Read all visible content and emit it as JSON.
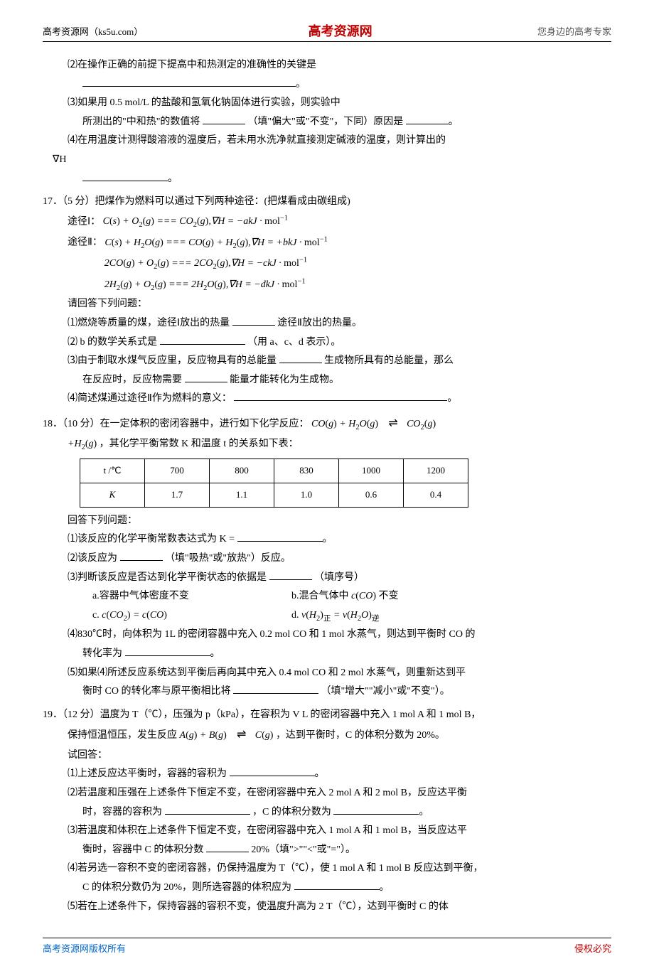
{
  "header": {
    "left": "高考资源网（ks5u.com）",
    "center": "高考资源网",
    "right": "您身边的高考专家"
  },
  "footer": {
    "left": "高考资源网版权所有",
    "right": "侵权必究"
  },
  "q16": {
    "p2": "⑵在操作正确的前提下提高中和热测定的准确性的关键是",
    "p3_a": "⑶如果用 0.5 mol/L 的盐酸和氢氧化钠固体进行实验，则实验中",
    "p3_b": "所测出的\"中和热\"的数值将",
    "p3_c": "（填\"偏大\"或\"不变\"，下同）原因是",
    "p4_a": "⑷在用温度计测得酸溶液的温度后，若未用水洗净就直接测定碱液的温度，则计算出的",
    "p4_b": "∇H"
  },
  "q17": {
    "head": "17．（5 分）把煤作为燃料可以通过下列两种途径：(把煤看成由碳组成)",
    "r1": "途径Ⅰ：",
    "r2": "途径Ⅱ：",
    "ask": "请回答下列问题：",
    "p1_a": "⑴燃烧等质量的煤，途径Ⅰ放出的热量",
    "p1_b": "途径Ⅱ放出的热量。",
    "p2_a": "⑵ b 的数学关系式是",
    "p2_b": "（用 a、c、d 表示）。",
    "p3_a": "⑶由于制取水煤气反应里，反应物具有的总能量",
    "p3_b": "生成物所具有的总能量，那么",
    "p3_c": "在反应时，反应物需要",
    "p3_d": "能量才能转化为生成物。",
    "p4": "⑷简述煤通过途径Ⅱ作为燃料的意义："
  },
  "q18": {
    "head_a": "18．（10 分）在一定体积的密闭容器中，进行如下化学反应：",
    "head_b": "，其化学平衡常数 K 和温度 t 的关系如下表：",
    "table": {
      "columns": [
        "t /℃",
        "700",
        "800",
        "830",
        "1000",
        "1200"
      ],
      "row2": [
        "K",
        "1.7",
        "1.1",
        "1.0",
        "0.6",
        "0.4"
      ]
    },
    "ask": "回答下列问题：",
    "p1": "⑴该反应的化学平衡常数表达式为 K =",
    "p2_a": "⑵该反应为",
    "p2_b": "（填\"吸热\"或\"放热\"）反应。",
    "p3_a": "⑶判断该反应是否达到化学平衡状态的依据是",
    "p3_b": "（填序号）",
    "opt_a": "a.容器中气体密度不变",
    "opt_b": "b.混合气体中 c(CO) 不变",
    "opt_c": "c. c(CO₂) = c(CO)",
    "opt_d": "d. v(H₂)正 = v(H₂O)逆",
    "p4_a": "⑷830℃时，向体积为 1L 的密闭容器中充入 0.2 mol CO 和 1 mol 水蒸气，则达到平衡时 CO 的",
    "p4_b": "转化率为",
    "p5_a": "⑸如果⑷所述反应系统达到平衡后再向其中充入 0.4 mol CO 和 2 mol 水蒸气，则重新达到平",
    "p5_b": "衡时 CO 的转化率与原平衡相比将",
    "p5_c": "（填\"增大\"\"减小\"或\"不变\"）。"
  },
  "q19": {
    "head_a": "19．（12 分）温度为 T（℃），压强为 p（kPa），在容积为 V L 的密闭容器中充入 1 mol A 和 1 mol B，",
    "head_b": "保持恒温恒压，发生反应",
    "head_c": "，达到平衡时，C 的体积分数为 20%。",
    "ask": "试回答：",
    "p1": "⑴上述反应达平衡时，容器的容积为",
    "p2_a": "⑵若温度和压强在上述条件下恒定不变，在密闭容器中充入 2 mol A 和 2 mol B，反应达平衡",
    "p2_b": "时，容器的容积为",
    "p2_c": "，C 的体积分数为",
    "p3_a": "⑶若温度和体积在上述条件下恒定不变，在密闭容器中充入 1 mol A 和 1 mol B，当反应达平",
    "p3_b": "衡时，容器中 C 的体积分数",
    "p3_c": "20%（填\">\"\"<\"或\"=\"）。",
    "p4_a": "⑷若另选一容积不变的密闭容器，仍保持温度为 T（℃），使 1 mol A 和 1 mol B 反应达到平衡，",
    "p4_b": "C 的体积分数仍为 20%，则所选容器的体积应为",
    "p5": "⑸若在上述条件下，保持容器的容积不变，使温度升高为 2 T（℃），达到平衡时 C 的体"
  }
}
